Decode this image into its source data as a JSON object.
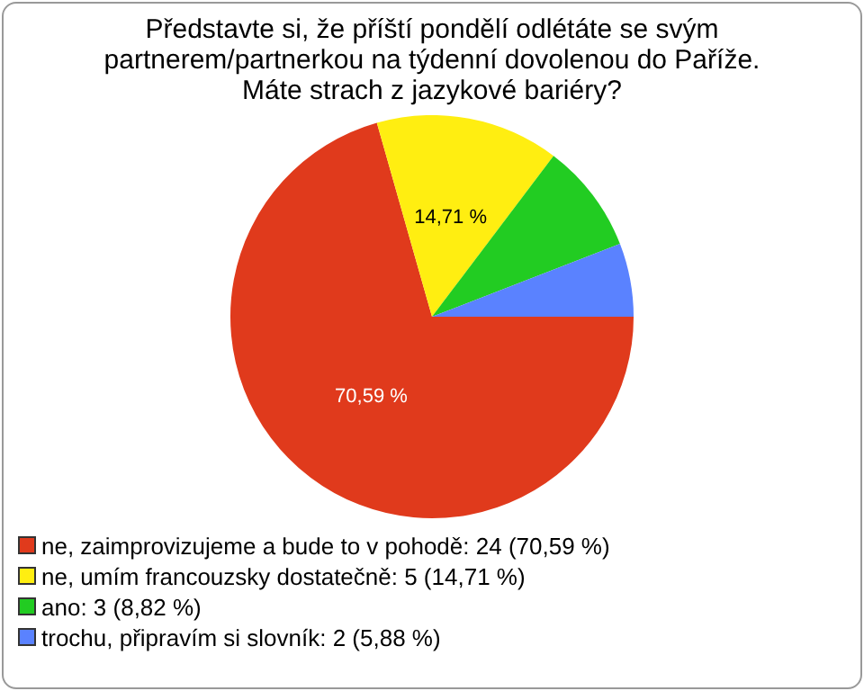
{
  "chart_data": {
    "type": "pie",
    "title": "Představte si, že příští pondělí odlétáte se svým partnerem/partnerkou na týdenní dovolenou do Paříže. Máte strach z jazykové bariéry?",
    "categories": [
      "ne, zaimprovizujeme a bude to v pohodě: 24 (70,59 %)",
      "ne, umím francouzsky dostatečně: 5 (14,71 %)",
      "ano: 3 (8,82 %)",
      "trochu, připravím si slovník: 2 (5,88 %)"
    ],
    "values": [
      70.59,
      14.71,
      8.82,
      5.88
    ],
    "colors": [
      "#e03a1c",
      "#ffee11",
      "#22cc22",
      "#5a82ff"
    ],
    "value_labels": [
      "70,59 %",
      "14,71 %",
      null,
      null
    ],
    "legend": "bottom"
  }
}
